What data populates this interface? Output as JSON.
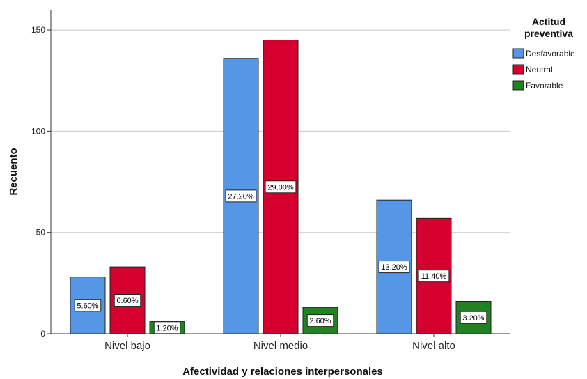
{
  "chart_data": {
    "type": "bar",
    "categories": [
      "Nivel bajo",
      "Nivel medio",
      "Nivel alto"
    ],
    "series": [
      {
        "name": "Desfavorable",
        "color": "#5596e6",
        "values": [
          28,
          136,
          66
        ],
        "labels": [
          "5.60%",
          "27.20%",
          "13.20%"
        ]
      },
      {
        "name": "Neutral",
        "color": "#d6002f",
        "values": [
          33,
          145,
          57
        ],
        "labels": [
          "6.60%",
          "29.00%",
          "11.40%"
        ]
      },
      {
        "name": "Favorable",
        "color": "#218221",
        "values": [
          6,
          13,
          16
        ],
        "labels": [
          "1.20%",
          "2.60%",
          "3.20%"
        ]
      }
    ],
    "ylim": [
      0,
      160
    ],
    "yticks": [
      0,
      50,
      100,
      150
    ],
    "ylabel": "Recuento",
    "xlabel": "Afectividad y relaciones interpersonales",
    "legend_title_lines": [
      "Actitud",
      "preventiva"
    ],
    "legend_position": "top-right",
    "grid": true
  }
}
